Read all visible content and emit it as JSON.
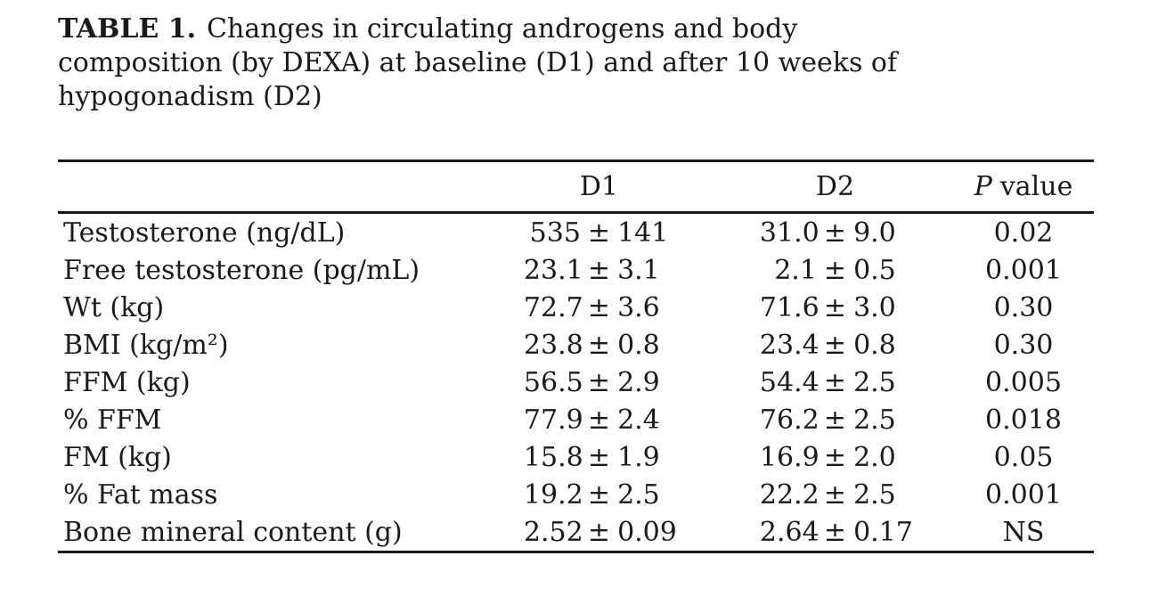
{
  "title": {
    "prefix": "TABLE 1.",
    "line1_rest": "Changes in circulating androgens and body",
    "line2": "composition (by DEXA) at baseline (D1) and after 10 weeks of",
    "line3": "hypogonadism (D2)"
  },
  "table": {
    "pm": "±",
    "headers": {
      "label": "",
      "d1": "D1",
      "d2": "D2",
      "p_italic": "P",
      "p_rest": "value"
    },
    "rows": [
      {
        "label": "Testosterone (ng/dL)",
        "d1v": "535",
        "d1e": "141",
        "d2v": "31.0",
        "d2e": "9.0",
        "p": "0.02"
      },
      {
        "label": "Free testosterone (pg/mL)",
        "d1v": "23.1",
        "d1e": "3.1",
        "d2v": "2.1",
        "d2e": "0.5",
        "p": "0.001"
      },
      {
        "label": "Wt (kg)",
        "d1v": "72.7",
        "d1e": "3.6",
        "d2v": "71.6",
        "d2e": "3.0",
        "p": "0.30"
      },
      {
        "label": "BMI (kg/m²)",
        "d1v": "23.8",
        "d1e": "0.8",
        "d2v": "23.4",
        "d2e": "0.8",
        "p": "0.30"
      },
      {
        "label": "FFM (kg)",
        "d1v": "56.5",
        "d1e": "2.9",
        "d2v": "54.4",
        "d2e": "2.5",
        "p": "0.005"
      },
      {
        "label": "% FFM",
        "d1v": "77.9",
        "d1e": "2.4",
        "d2v": "76.2",
        "d2e": "2.5",
        "p": "0.018"
      },
      {
        "label": "FM (kg)",
        "d1v": "15.8",
        "d1e": "1.9",
        "d2v": "16.9",
        "d2e": "2.0",
        "p": "0.05"
      },
      {
        "label": "% Fat mass",
        "d1v": "19.2",
        "d1e": "2.5",
        "d2v": "22.2",
        "d2e": "2.5",
        "p": "0.001"
      },
      {
        "label": "Bone mineral content (g)",
        "d1v": "2.52",
        "d1e": "0.09",
        "d2v": "2.64",
        "d2e": "0.17",
        "p": "NS"
      }
    ]
  }
}
